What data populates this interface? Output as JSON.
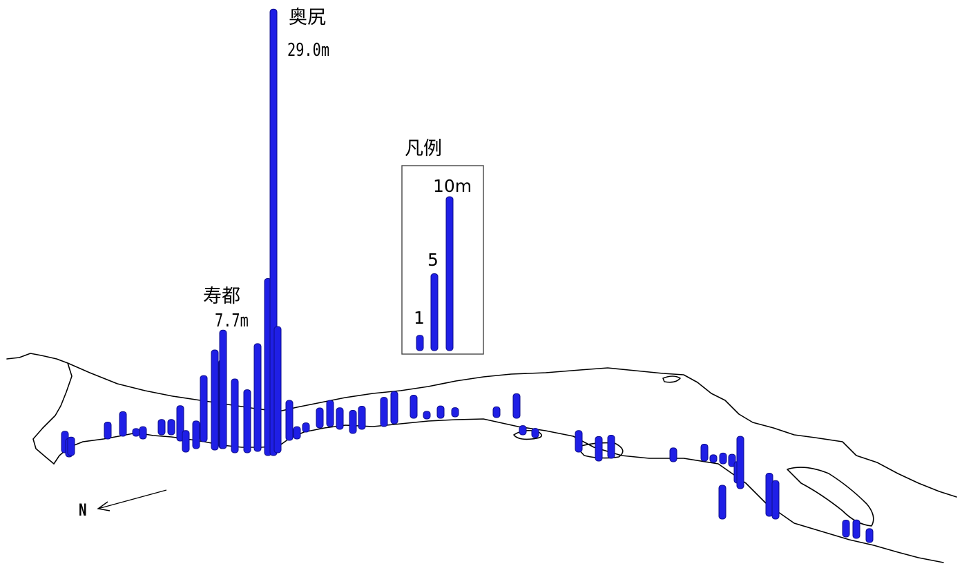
{
  "map": {
    "unit": "m",
    "bar_color": "#1f1fe6",
    "bar_edge_color": "#0c0c8a",
    "coast_color": "#000000",
    "callouts": [
      {
        "name": "奥尻",
        "value": "29.0m",
        "height_m": 29.0
      },
      {
        "name": "寿都",
        "value": "7.7m",
        "height_m": 7.7
      }
    ],
    "legend": {
      "title": "凡例",
      "entries": [
        {
          "label": "1",
          "height_m": 1
        },
        {
          "label": "5",
          "height_m": 5
        },
        {
          "label": "10m",
          "height_m": 10
        }
      ]
    },
    "north_arrow": {
      "label": "N"
    },
    "bars_m": [
      1.4,
      1.2,
      1.2,
      1.1,
      1.6,
      0.5,
      0.8,
      1.0,
      1.0,
      2.3,
      1.4,
      1.8,
      4.3,
      6.5,
      5.8,
      4.8,
      4.1,
      7.7,
      7.0,
      11.5,
      29.0,
      8.2,
      2.6,
      0.8,
      0.6,
      1.3,
      1.7,
      1.4,
      1.5,
      1.5,
      1.9,
      2.1,
      1.5,
      0.5,
      0.8,
      0.6,
      0.7,
      1.6,
      0.6,
      0.6,
      1.4,
      1.6,
      1.5,
      0.9,
      1.1,
      0.5,
      0.7,
      0.8,
      1.4,
      3.4,
      2.2,
      2.8,
      2.5,
      1.1,
      1.2,
      0.9
    ]
  }
}
